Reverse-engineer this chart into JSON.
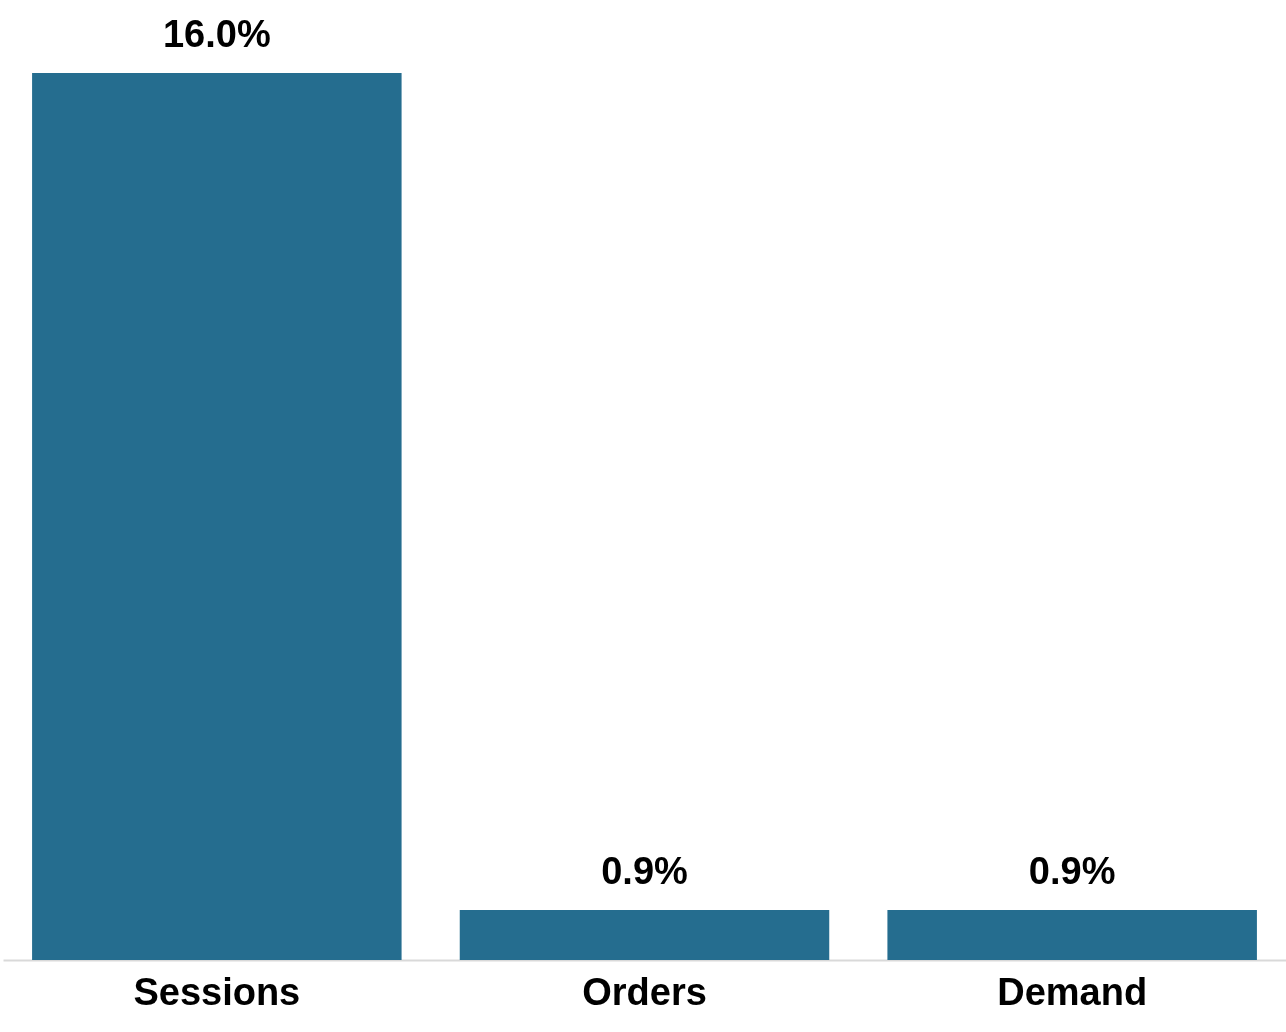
{
  "chart_data": {
    "type": "bar",
    "categories": [
      "Sessions",
      "Orders",
      "Demand"
    ],
    "values": [
      16.0,
      0.9,
      0.9
    ],
    "value_labels": [
      "16.0%",
      "0.9%",
      "0.9%"
    ],
    "color": "#256d8f"
  }
}
